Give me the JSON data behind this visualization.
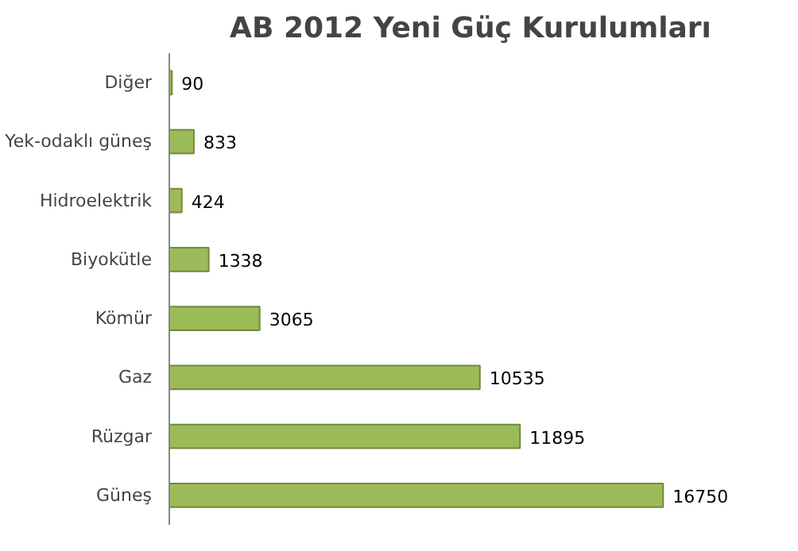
{
  "chart_data": {
    "type": "bar",
    "orientation": "horizontal",
    "title": "AB 2012 Yeni Güç Kurulumları",
    "categories": [
      "Diğer",
      "Yek-odaklı güneş",
      "Hidroelektrik",
      "Biyokütle",
      "Kömür",
      "Gaz",
      "Rüzgar",
      "Güneş"
    ],
    "values": [
      90,
      833,
      424,
      1338,
      3065,
      10535,
      11895,
      16750
    ],
    "color": "#9bbb59",
    "data_labels": true,
    "grid": false
  }
}
